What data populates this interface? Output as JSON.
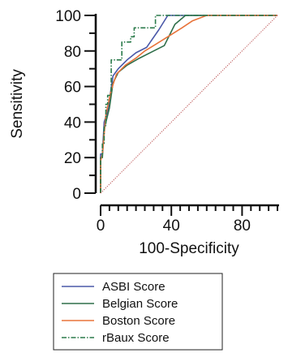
{
  "chart_data": {
    "type": "line",
    "xlabel": "100-Specificity",
    "ylabel": "Sensitivity",
    "xlim": [
      0,
      100
    ],
    "ylim": [
      0,
      100
    ],
    "x_ticks": [
      0,
      40,
      80
    ],
    "y_ticks": [
      0,
      20,
      40,
      60,
      80,
      100
    ],
    "x_minor_step": 5,
    "y_minor_step": 10,
    "grid": false,
    "legend_position": "bottom",
    "series": [
      {
        "name": "ASBI Score",
        "color": "#4a58a8",
        "dash": "solid",
        "points": [
          [
            0,
            0
          ],
          [
            0,
            22
          ],
          [
            1,
            22
          ],
          [
            2,
            40
          ],
          [
            4,
            46
          ],
          [
            7,
            66
          ],
          [
            10,
            70
          ],
          [
            15,
            75
          ],
          [
            20,
            79
          ],
          [
            26,
            82
          ],
          [
            33,
            92
          ],
          [
            38,
            100
          ],
          [
            100,
            100
          ]
        ]
      },
      {
        "name": "Belgian Score",
        "color": "#2f6e4a",
        "dash": "solid",
        "points": [
          [
            0,
            0
          ],
          [
            0,
            20
          ],
          [
            1,
            20
          ],
          [
            2,
            36
          ],
          [
            5,
            48
          ],
          [
            7,
            62
          ],
          [
            10,
            68
          ],
          [
            15,
            72
          ],
          [
            22,
            76
          ],
          [
            30,
            80
          ],
          [
            36,
            83
          ],
          [
            42,
            95
          ],
          [
            48,
            100
          ],
          [
            100,
            100
          ]
        ]
      },
      {
        "name": "Boston Score",
        "color": "#e8733a",
        "dash": "solid",
        "points": [
          [
            0,
            0
          ],
          [
            0,
            18
          ],
          [
            1,
            22
          ],
          [
            3,
            44
          ],
          [
            6,
            58
          ],
          [
            9,
            67
          ],
          [
            14,
            72
          ],
          [
            20,
            76
          ],
          [
            25,
            80
          ],
          [
            30,
            83
          ],
          [
            38,
            88
          ],
          [
            46,
            93
          ],
          [
            52,
            97
          ],
          [
            60,
            100
          ],
          [
            100,
            100
          ]
        ]
      },
      {
        "name": "rBaux Score",
        "color": "#2a7a4a",
        "dash": "dashdot",
        "points": [
          [
            0,
            0
          ],
          [
            0,
            20
          ],
          [
            1,
            20
          ],
          [
            1,
            28
          ],
          [
            2,
            28
          ],
          [
            2,
            38
          ],
          [
            3,
            38
          ],
          [
            3,
            50
          ],
          [
            4,
            50
          ],
          [
            4,
            55
          ],
          [
            6,
            55
          ],
          [
            6,
            75
          ],
          [
            12,
            75
          ],
          [
            12,
            85
          ],
          [
            17,
            85
          ],
          [
            17,
            88
          ],
          [
            19,
            88
          ],
          [
            19,
            93
          ],
          [
            31,
            93
          ],
          [
            31,
            100
          ],
          [
            100,
            100
          ]
        ]
      },
      {
        "name": "",
        "color": "#b84b4b",
        "dash": "dotted",
        "reference": true,
        "points": [
          [
            0,
            0
          ],
          [
            100,
            100
          ]
        ]
      }
    ]
  }
}
